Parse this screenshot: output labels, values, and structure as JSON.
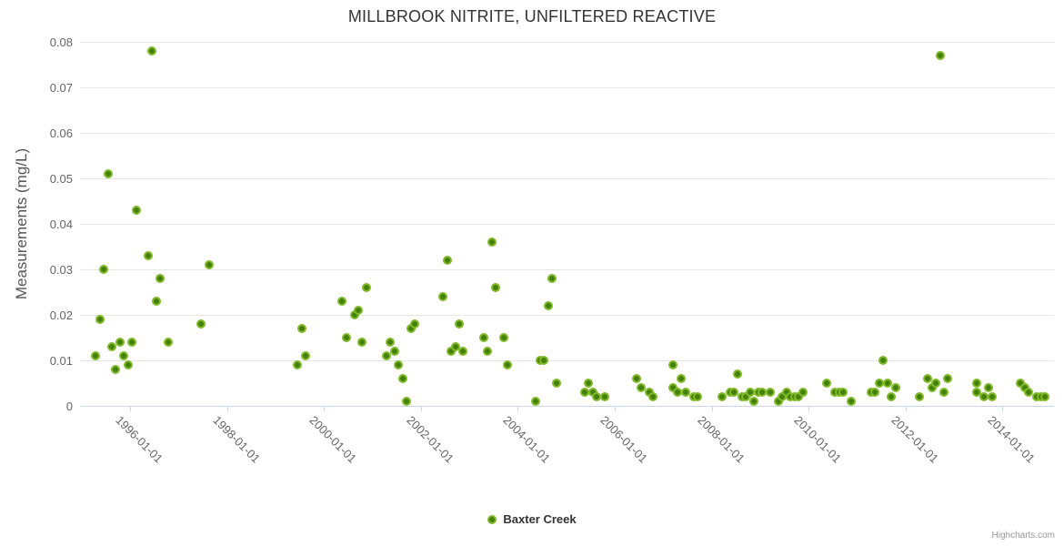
{
  "chart": {
    "title": "MILLBROOK NITRITE, UNFILTERED REACTIVE",
    "credits_label": "Highcharts.com"
  },
  "legend": {
    "series_label": "Baxter Creek"
  },
  "colors": {
    "marker_fill": "#44800b",
    "marker_ring": "#7fb927",
    "grid": "#e6e6e6",
    "axis_line": "#ccd6eb",
    "title_text": "#333333",
    "axis_text": "#666666",
    "credits_text": "#999999"
  },
  "chart_data": {
    "type": "scatter",
    "title": "MILLBROOK NITRITE, UNFILTERED REACTIVE",
    "xlabel": "",
    "ylabel": "Measurements (mg/L)",
    "ylim": [
      0,
      0.08
    ],
    "yticks": [
      "0",
      "0.01",
      "0.02",
      "0.03",
      "0.04",
      "0.05",
      "0.06",
      "0.07",
      "0.08"
    ],
    "xticks": [
      "1996-01-01",
      "1998-01-01",
      "2000-01-01",
      "2002-01-01",
      "2004-01-01",
      "2006-01-01",
      "2008-01-01",
      "2010-01-01",
      "2012-01-01",
      "2014-01-01"
    ],
    "x_range": [
      "1995-01",
      "2015-01"
    ],
    "grid": "horizontal",
    "legend_position": "bottom-center",
    "series": [
      {
        "name": "Baxter Creek",
        "points": [
          [
            "1995-04",
            0.011
          ],
          [
            "1995-05",
            0.019
          ],
          [
            "1995-06",
            0.03
          ],
          [
            "1995-07",
            0.051
          ],
          [
            "1995-08",
            0.013
          ],
          [
            "1995-09",
            0.008
          ],
          [
            "1995-10",
            0.014
          ],
          [
            "1995-11",
            0.011
          ],
          [
            "1995-12",
            0.009
          ],
          [
            "1996-01",
            0.014
          ],
          [
            "1996-02",
            0.043
          ],
          [
            "1996-05",
            0.033
          ],
          [
            "1996-06",
            0.078
          ],
          [
            "1996-07",
            0.023
          ],
          [
            "1996-08",
            0.028
          ],
          [
            "1996-10",
            0.014
          ],
          [
            "1997-06",
            0.018
          ],
          [
            "1997-08",
            0.031
          ],
          [
            "1999-06",
            0.009
          ],
          [
            "1999-07",
            0.017
          ],
          [
            "1999-08",
            0.011
          ],
          [
            "2000-05",
            0.023
          ],
          [
            "2000-06",
            0.015
          ],
          [
            "2000-08",
            0.02
          ],
          [
            "2000-09",
            0.021
          ],
          [
            "2000-10",
            0.014
          ],
          [
            "2000-11",
            0.026
          ],
          [
            "2001-04",
            0.011
          ],
          [
            "2001-05",
            0.014
          ],
          [
            "2001-06",
            0.012
          ],
          [
            "2001-07",
            0.009
          ],
          [
            "2001-08",
            0.006
          ],
          [
            "2001-09",
            0.001
          ],
          [
            "2001-10",
            0.017
          ],
          [
            "2001-11",
            0.018
          ],
          [
            "2002-06",
            0.024
          ],
          [
            "2002-07",
            0.032
          ],
          [
            "2002-08",
            0.012
          ],
          [
            "2002-09",
            0.013
          ],
          [
            "2002-10",
            0.018
          ],
          [
            "2002-11",
            0.012
          ],
          [
            "2003-04",
            0.015
          ],
          [
            "2003-05",
            0.012
          ],
          [
            "2003-06",
            0.036
          ],
          [
            "2003-07",
            0.026
          ],
          [
            "2003-09",
            0.015
          ],
          [
            "2003-10",
            0.009
          ],
          [
            "2004-05",
            0.001
          ],
          [
            "2004-06",
            0.01
          ],
          [
            "2004-07",
            0.01
          ],
          [
            "2004-08",
            0.022
          ],
          [
            "2004-09",
            0.028
          ],
          [
            "2004-10",
            0.005
          ],
          [
            "2005-05",
            0.003
          ],
          [
            "2005-06",
            0.005
          ],
          [
            "2005-07",
            0.003
          ],
          [
            "2005-08",
            0.002
          ],
          [
            "2005-10",
            0.002
          ],
          [
            "2006-06",
            0.006
          ],
          [
            "2006-07",
            0.004
          ],
          [
            "2006-09",
            0.003
          ],
          [
            "2006-10",
            0.002
          ],
          [
            "2007-03",
            0.009
          ],
          [
            "2007-03",
            0.004
          ],
          [
            "2007-04",
            0.003
          ],
          [
            "2007-05",
            0.006
          ],
          [
            "2007-06",
            0.003
          ],
          [
            "2007-08",
            0.002
          ],
          [
            "2007-09",
            0.002
          ],
          [
            "2008-03",
            0.002
          ],
          [
            "2008-05",
            0.003
          ],
          [
            "2008-06",
            0.003
          ],
          [
            "2008-07",
            0.007
          ],
          [
            "2008-08",
            0.002
          ],
          [
            "2008-09",
            0.002
          ],
          [
            "2008-10",
            0.003
          ],
          [
            "2008-11",
            0.001
          ],
          [
            "2008-12",
            0.003
          ],
          [
            "2009-01",
            0.003
          ],
          [
            "2009-03",
            0.003
          ],
          [
            "2009-05",
            0.001
          ],
          [
            "2009-06",
            0.002
          ],
          [
            "2009-07",
            0.003
          ],
          [
            "2009-08",
            0.002
          ],
          [
            "2009-09",
            0.002
          ],
          [
            "2009-10",
            0.002
          ],
          [
            "2009-11",
            0.003
          ],
          [
            "2010-05",
            0.005
          ],
          [
            "2010-07",
            0.003
          ],
          [
            "2010-08",
            0.003
          ],
          [
            "2010-09",
            0.003
          ],
          [
            "2010-11",
            0.001
          ],
          [
            "2011-04",
            0.003
          ],
          [
            "2011-05",
            0.003
          ],
          [
            "2011-06",
            0.005
          ],
          [
            "2011-07",
            0.01
          ],
          [
            "2011-08",
            0.005
          ],
          [
            "2011-09",
            0.002
          ],
          [
            "2011-10",
            0.004
          ],
          [
            "2012-04",
            0.002
          ],
          [
            "2012-06",
            0.006
          ],
          [
            "2012-07",
            0.004
          ],
          [
            "2012-08",
            0.005
          ],
          [
            "2012-09",
            0.077
          ],
          [
            "2012-10",
            0.003
          ],
          [
            "2012-11",
            0.006
          ],
          [
            "2013-06",
            0.005
          ],
          [
            "2013-06",
            0.003
          ],
          [
            "2013-08",
            0.002
          ],
          [
            "2013-09",
            0.004
          ],
          [
            "2013-10",
            0.002
          ],
          [
            "2014-05",
            0.005
          ],
          [
            "2014-06",
            0.004
          ],
          [
            "2014-07",
            0.003
          ],
          [
            "2014-09",
            0.002
          ],
          [
            "2014-10",
            0.002
          ],
          [
            "2014-11",
            0.002
          ]
        ]
      }
    ]
  }
}
